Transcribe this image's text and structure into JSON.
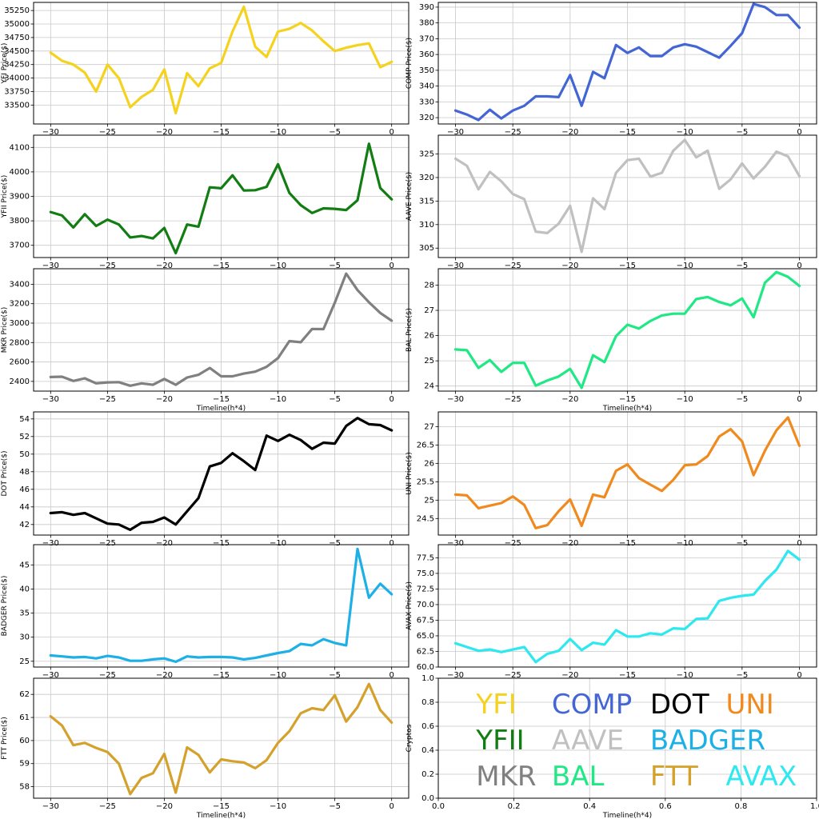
{
  "figure": {
    "background": "#ffffff",
    "grid_color": "#c8c8c8",
    "axis_color": "#000000"
  },
  "chart_data": [
    {
      "type": "line",
      "series_name": "YFI",
      "color": "#f5d21e",
      "ylabel": "YFI Price($)",
      "xlabel": "",
      "xlim": [
        -31.5,
        1.5
      ],
      "ylim": [
        33150,
        35400
      ],
      "xticks": [
        -30,
        -25,
        -20,
        -15,
        -10,
        -5,
        0
      ],
      "xtick_labels": [
        "−30",
        "−25",
        "−20",
        "−15",
        "−10",
        "−5",
        "0"
      ],
      "yticks": [
        33500,
        33750,
        34000,
        34250,
        34500,
        34750,
        35000,
        35250
      ],
      "x": [
        -30,
        -29,
        -28,
        -27,
        -26,
        -25,
        -24,
        -23,
        -22,
        -21,
        -20,
        -19,
        -18,
        -17,
        -16,
        -15,
        -14,
        -13,
        -12,
        -11,
        -10,
        -9,
        -8,
        -7,
        -6,
        -5,
        -4,
        -3,
        -2,
        -1,
        0
      ],
      "y": [
        34470,
        34320,
        34250,
        34100,
        33750,
        34250,
        34000,
        33460,
        33650,
        33780,
        34160,
        33350,
        34090,
        33850,
        34180,
        34280,
        34860,
        35320,
        34580,
        34390,
        34860,
        34910,
        35020,
        34880,
        34680,
        34500,
        34560,
        34610,
        34640,
        34200,
        34300
      ]
    },
    {
      "type": "line",
      "series_name": "COMP",
      "color": "#4466d4",
      "ylabel": "COMP Price($)",
      "xlabel": "",
      "xlim": [
        -31.5,
        1.5
      ],
      "ylim": [
        316,
        393
      ],
      "xticks": [
        -30,
        -25,
        -20,
        -15,
        -10,
        -5,
        0
      ],
      "xtick_labels": [
        "−30",
        "−25",
        "−20",
        "−15",
        "−10",
        "−5",
        "0"
      ],
      "yticks": [
        320,
        330,
        340,
        350,
        360,
        370,
        380,
        390
      ],
      "x": [
        -30,
        -29,
        -28,
        -27,
        -26,
        -25,
        -24,
        -23,
        -22,
        -21,
        -20,
        -19,
        -18,
        -17,
        -16,
        -15,
        -14,
        -13,
        -12,
        -11,
        -10,
        -9,
        -8,
        -7,
        -6,
        -5,
        -4,
        -3,
        -2,
        -1,
        0
      ],
      "y": [
        324.5,
        322,
        318.5,
        325,
        319.5,
        324.5,
        327.5,
        333.5,
        333.5,
        333,
        347,
        327.5,
        349,
        345,
        366,
        361,
        364.5,
        359,
        359,
        364.5,
        366.5,
        365,
        361.5,
        358,
        365.5,
        373.5,
        392,
        390,
        385,
        385,
        377
      ]
    },
    {
      "type": "line",
      "series_name": "YFII",
      "color": "#127d12",
      "ylabel": "YFII Price($)",
      "xlabel": "",
      "xlim": [
        -31.5,
        1.5
      ],
      "ylim": [
        3650,
        4150
      ],
      "xticks": [
        -30,
        -25,
        -20,
        -15,
        -10,
        -5,
        0
      ],
      "xtick_labels": [
        "−30",
        "−25",
        "−20",
        "−15",
        "−10",
        "−5",
        "0"
      ],
      "yticks": [
        3700,
        3800,
        3900,
        4000,
        4100
      ],
      "x": [
        -30,
        -29,
        -28,
        -27,
        -26,
        -25,
        -24,
        -23,
        -22,
        -21,
        -20,
        -19,
        -18,
        -17,
        -16,
        -15,
        -14,
        -13,
        -12,
        -11,
        -10,
        -9,
        -8,
        -7,
        -6,
        -5,
        -4,
        -3,
        -2,
        -1,
        0
      ],
      "y": [
        3836,
        3822,
        3773,
        3827,
        3779,
        3805,
        3785,
        3732,
        3738,
        3728,
        3771,
        3668,
        3785,
        3776,
        3937,
        3933,
        3986,
        3924,
        3925,
        3939,
        4031,
        3914,
        3864,
        3832,
        3851,
        3849,
        3844,
        3884,
        4115,
        3934,
        3888
      ]
    },
    {
      "type": "line",
      "series_name": "AAVE",
      "color": "#c0c0c0",
      "ylabel": "AAVE Price($)",
      "xlabel": "",
      "xlim": [
        -31.5,
        1.5
      ],
      "ylim": [
        303,
        329
      ],
      "xticks": [
        -30,
        -25,
        -20,
        -15,
        -10,
        -5,
        0
      ],
      "xtick_labels": [
        "−30",
        "−25",
        "−20",
        "−15",
        "−10",
        "−5",
        "0"
      ],
      "yticks": [
        305,
        310,
        315,
        320,
        325
      ],
      "x": [
        -30,
        -29,
        -28,
        -27,
        -26,
        -25,
        -24,
        -23,
        -22,
        -21,
        -20,
        -19,
        -18,
        -17,
        -16,
        -15,
        -14,
        -13,
        -12,
        -11,
        -10,
        -9,
        -8,
        -7,
        -6,
        -5,
        -4,
        -3,
        -2,
        -1,
        0
      ],
      "y": [
        324,
        322.5,
        317.5,
        321.2,
        319.2,
        316.5,
        315.4,
        308.5,
        308.2,
        310.2,
        314,
        304.2,
        315.6,
        313.3,
        321,
        323.7,
        324,
        320.2,
        321,
        325.7,
        328,
        324.3,
        325.7,
        317.6,
        319.6,
        323,
        319.8,
        322.3,
        325.5,
        324.5,
        320.3
      ]
    },
    {
      "type": "line",
      "series_name": "MKR",
      "color": "#808080",
      "ylabel": "MKR Price($)",
      "xlabel": "Timeline(h*4)",
      "xlim": [
        -31.5,
        1.5
      ],
      "ylim": [
        2300,
        3560
      ],
      "xticks": [
        -30,
        -25,
        -20,
        -15,
        -10,
        -5,
        0
      ],
      "xtick_labels": [
        "−30",
        "−25",
        "−20",
        "−15",
        "−10",
        "−5",
        "0"
      ],
      "yticks": [
        2400,
        2600,
        2800,
        3000,
        3200,
        3400
      ],
      "x": [
        -30,
        -29,
        -28,
        -27,
        -26,
        -25,
        -24,
        -23,
        -22,
        -21,
        -20,
        -19,
        -18,
        -17,
        -16,
        -15,
        -14,
        -13,
        -12,
        -11,
        -10,
        -9,
        -8,
        -7,
        -6,
        -5,
        -4,
        -3,
        -2,
        -1,
        0
      ],
      "y": [
        2445,
        2448,
        2405,
        2432,
        2380,
        2390,
        2392,
        2355,
        2380,
        2365,
        2425,
        2365,
        2440,
        2468,
        2538,
        2452,
        2452,
        2480,
        2500,
        2550,
        2640,
        2815,
        2803,
        2940,
        2938,
        3210,
        3510,
        3340,
        3215,
        3105,
        3025
      ]
    },
    {
      "type": "line",
      "series_name": "BAL",
      "color": "#1fe884",
      "ylabel": "BAL Price($)",
      "xlabel": "Timeline(h*4)",
      "xlim": [
        -31.5,
        1.5
      ],
      "ylim": [
        23.8,
        28.65
      ],
      "xticks": [
        -30,
        -25,
        -20,
        -15,
        -10,
        -5,
        0
      ],
      "xtick_labels": [
        "−30",
        "−25",
        "−20",
        "−15",
        "−10",
        "−5",
        "0"
      ],
      "yticks": [
        24,
        25,
        26,
        27,
        28
      ],
      "x": [
        -30,
        -29,
        -28,
        -27,
        -26,
        -25,
        -24,
        -23,
        -22,
        -21,
        -20,
        -19,
        -18,
        -17,
        -16,
        -15,
        -14,
        -13,
        -12,
        -11,
        -10,
        -9,
        -8,
        -7,
        -6,
        -5,
        -4,
        -3,
        -2,
        -1,
        0
      ],
      "y": [
        25.45,
        25.42,
        24.72,
        25.03,
        24.56,
        24.92,
        24.92,
        24.02,
        24.22,
        24.38,
        24.68,
        23.93,
        25.22,
        24.95,
        25.98,
        26.43,
        26.28,
        26.58,
        26.8,
        26.87,
        26.87,
        27.45,
        27.53,
        27.33,
        27.2,
        27.47,
        26.73,
        28.1,
        28.52,
        28.33,
        27.97
      ]
    },
    {
      "type": "line",
      "series_name": "DOT",
      "color": "#000000",
      "ylabel": "DOT Price($)",
      "xlabel": "",
      "xlim": [
        -31.5,
        1.5
      ],
      "ylim": [
        40.8,
        54.8
      ],
      "xticks": [
        -30,
        -25,
        -20,
        -15,
        -10,
        -5,
        0
      ],
      "xtick_labels": [
        "−30",
        "−25",
        "−20",
        "−15",
        "−10",
        "−5",
        "0"
      ],
      "yticks": [
        42,
        44,
        46,
        48,
        50,
        52,
        54
      ],
      "x": [
        -30,
        -29,
        -28,
        -27,
        -26,
        -25,
        -24,
        -23,
        -22,
        -21,
        -20,
        -19,
        -18,
        -17,
        -16,
        -15,
        -14,
        -13,
        -12,
        -11,
        -10,
        -9,
        -8,
        -7,
        -6,
        -5,
        -4,
        -3,
        -2,
        -1,
        0
      ],
      "y": [
        43.3,
        43.4,
        43.1,
        43.3,
        42.7,
        42.1,
        42.0,
        41.4,
        42.2,
        42.3,
        42.8,
        42.0,
        43.5,
        45.0,
        48.6,
        49.0,
        50.1,
        49.2,
        48.2,
        52.1,
        51.5,
        52.2,
        51.6,
        50.6,
        51.3,
        51.2,
        53.2,
        54.1,
        53.4,
        53.3,
        52.7
      ]
    },
    {
      "type": "line",
      "series_name": "UNI",
      "color": "#f08a1e",
      "ylabel": "UNI Price($)",
      "xlabel": "",
      "xlim": [
        -31.5,
        1.5
      ],
      "ylim": [
        24.05,
        27.4
      ],
      "xticks": [
        -30,
        -25,
        -20,
        -15,
        -10,
        -5,
        0
      ],
      "xtick_labels": [
        "−30",
        "−25",
        "−20",
        "−15",
        "−10",
        "−5",
        "0"
      ],
      "yticks": [
        24.5,
        25.0,
        25.5,
        26.0,
        26.5,
        27.0
      ],
      "x": [
        -30,
        -29,
        -28,
        -27,
        -26,
        -25,
        -24,
        -23,
        -22,
        -21,
        -20,
        -19,
        -18,
        -17,
        -16,
        -15,
        -14,
        -13,
        -12,
        -11,
        -10,
        -9,
        -8,
        -7,
        -6,
        -5,
        -4,
        -3,
        -2,
        -1,
        0
      ],
      "y": [
        25.15,
        25.13,
        24.78,
        24.85,
        24.92,
        25.1,
        24.87,
        24.24,
        24.32,
        24.7,
        25.02,
        24.3,
        25.15,
        25.08,
        25.8,
        25.97,
        25.6,
        25.42,
        25.25,
        25.55,
        25.95,
        25.97,
        26.2,
        26.73,
        26.93,
        26.6,
        25.68,
        26.35,
        26.9,
        27.25,
        26.48
      ]
    },
    {
      "type": "line",
      "series_name": "BADGER",
      "color": "#1cb0e6",
      "ylabel": "BADGER Price($)",
      "xlabel": "",
      "xlim": [
        -31.5,
        1.5
      ],
      "ylim": [
        23.8,
        49.2
      ],
      "xticks": [
        -30,
        -25,
        -20,
        -15,
        -10,
        -5,
        0
      ],
      "xtick_labels": [
        "−30",
        "−25",
        "−20",
        "−15",
        "−10",
        "−5",
        "0"
      ],
      "yticks": [
        25,
        30,
        35,
        40,
        45
      ],
      "x": [
        -30,
        -29,
        -28,
        -27,
        -26,
        -25,
        -24,
        -23,
        -22,
        -21,
        -20,
        -19,
        -18,
        -17,
        -16,
        -15,
        -14,
        -13,
        -12,
        -11,
        -10,
        -9,
        -8,
        -7,
        -6,
        -5,
        -4,
        -3,
        -2,
        -1,
        0
      ],
      "y": [
        26.2,
        26.0,
        25.8,
        25.9,
        25.6,
        26.1,
        25.8,
        25.1,
        25.1,
        25.4,
        25.6,
        24.9,
        26.0,
        25.8,
        25.9,
        25.9,
        25.8,
        25.4,
        25.7,
        26.2,
        26.7,
        27.1,
        28.6,
        28.3,
        29.6,
        28.8,
        28.3,
        48.3,
        38.2,
        41.1,
        38.9
      ]
    },
    {
      "type": "line",
      "series_name": "AVAX",
      "color": "#2ee8f0",
      "ylabel": "AVAX Price($)",
      "xlabel": "",
      "xlim": [
        -31.5,
        1.5
      ],
      "ylim": [
        60,
        79.6
      ],
      "xticks": [
        -30,
        -25,
        -20,
        -15,
        -10,
        -5,
        0
      ],
      "xtick_labels": [
        "−30",
        "−25",
        "−20",
        "−15",
        "−10",
        "−5",
        "0"
      ],
      "yticks": [
        60.0,
        62.5,
        65.0,
        67.5,
        70.0,
        72.5,
        75.0,
        77.5
      ],
      "ytick_labels": [
        "60.0",
        "62.5",
        "65.0",
        "67.5",
        "70.0",
        "72.5",
        "75.0",
        "77.5"
      ],
      "x": [
        -30,
        -29,
        -28,
        -27,
        -26,
        -25,
        -24,
        -23,
        -22,
        -21,
        -20,
        -19,
        -18,
        -17,
        -16,
        -15,
        -14,
        -13,
        -12,
        -11,
        -10,
        -9,
        -8,
        -7,
        -6,
        -5,
        -4,
        -3,
        -2,
        -1,
        0
      ],
      "y": [
        63.8,
        63.2,
        62.6,
        62.8,
        62.4,
        62.8,
        63.2,
        60.8,
        62.1,
        62.6,
        64.5,
        62.7,
        63.9,
        63.6,
        65.9,
        64.9,
        64.9,
        65.4,
        65.2,
        66.2,
        66.1,
        67.7,
        67.8,
        70.6,
        71.1,
        71.4,
        71.6,
        73.8,
        75.6,
        78.6,
        77.2
      ]
    },
    {
      "type": "line",
      "series_name": "FTT",
      "color": "#d4a12c",
      "ylabel": "FTT Price($)",
      "xlabel": "Timeline(h*4)",
      "xlim": [
        -31.5,
        1.5
      ],
      "ylim": [
        57.5,
        62.7
      ],
      "xticks": [
        -30,
        -25,
        -20,
        -15,
        -10,
        -5,
        0
      ],
      "xtick_labels": [
        "−30",
        "−25",
        "−20",
        "−15",
        "−10",
        "−5",
        "0"
      ],
      "yticks": [
        58,
        59,
        60,
        61,
        62
      ],
      "x": [
        -30,
        -29,
        -28,
        -27,
        -26,
        -25,
        -24,
        -23,
        -22,
        -21,
        -20,
        -19,
        -18,
        -17,
        -16,
        -15,
        -14,
        -13,
        -12,
        -11,
        -10,
        -9,
        -8,
        -7,
        -6,
        -5,
        -4,
        -3,
        -2,
        -1,
        0
      ],
      "y": [
        61.05,
        60.65,
        59.8,
        59.9,
        59.68,
        59.5,
        59.0,
        57.68,
        58.38,
        58.58,
        59.42,
        57.74,
        59.7,
        59.38,
        58.62,
        59.18,
        59.1,
        59.05,
        58.8,
        59.15,
        59.9,
        60.4,
        61.18,
        61.4,
        61.32,
        61.96,
        60.82,
        61.45,
        62.45,
        61.32,
        60.78
      ]
    },
    {
      "type": "legend_panel",
      "series_name": "Cryptos",
      "ylabel": "Cryptos",
      "xlabel": "Timeline(h*4)",
      "xlim": [
        0,
        1
      ],
      "ylim": [
        0,
        1
      ],
      "xticks": [
        0,
        0.2,
        0.4,
        0.6,
        0.8,
        1.0
      ],
      "xtick_labels": [
        "0.0",
        "0.2",
        "0.4",
        "0.6",
        "0.8",
        "1.0"
      ],
      "yticks": [
        0,
        0.2,
        0.4,
        0.6,
        0.8,
        1.0
      ],
      "ytick_labels": [
        "0.0",
        "0.2",
        "0.4",
        "0.6",
        "0.8",
        "1.0"
      ],
      "legend": [
        {
          "name": "YFI",
          "color": "#f5d21e",
          "x": 0.1,
          "y": 0.77
        },
        {
          "name": "COMP",
          "color": "#4466d4",
          "x": 0.3,
          "y": 0.77
        },
        {
          "name": "DOT",
          "color": "#000000",
          "x": 0.56,
          "y": 0.77
        },
        {
          "name": "UNI",
          "color": "#f08a1e",
          "x": 0.76,
          "y": 0.77
        },
        {
          "name": "YFII",
          "color": "#127d12",
          "x": 0.1,
          "y": 0.47
        },
        {
          "name": "AAVE",
          "color": "#c0c0c0",
          "x": 0.3,
          "y": 0.47
        },
        {
          "name": "BADGER",
          "color": "#1cb0e6",
          "x": 0.56,
          "y": 0.47
        },
        {
          "name": "MKR",
          "color": "#808080",
          "x": 0.1,
          "y": 0.17
        },
        {
          "name": "BAL",
          "color": "#1fe884",
          "x": 0.3,
          "y": 0.17
        },
        {
          "name": "FTT",
          "color": "#d4a12c",
          "x": 0.56,
          "y": 0.17
        },
        {
          "name": "AVAX",
          "color": "#2ee8f0",
          "x": 0.76,
          "y": 0.17
        }
      ]
    }
  ]
}
